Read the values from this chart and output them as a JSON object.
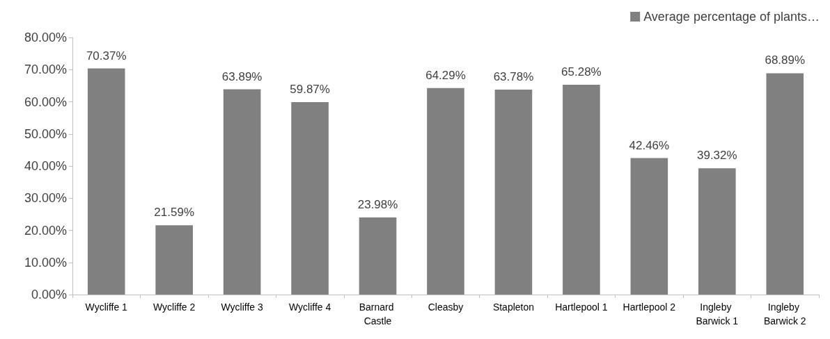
{
  "chart_data": {
    "type": "bar",
    "categories": [
      "Wycliffe 1",
      "Wycliffe 2",
      "Wycliffe 3",
      "Wycliffe 4",
      "Barnard Castle",
      "Cleasby",
      "Stapleton",
      "Hartlepool 1",
      "Hartlepool 2",
      "Ingleby Barwick 1",
      "Ingleby Barwick 2"
    ],
    "series": [
      {
        "name": "Average percentage of plants…",
        "color": "#808080",
        "values": [
          70.37,
          21.59,
          63.89,
          59.87,
          23.98,
          64.29,
          63.78,
          65.28,
          42.46,
          39.32,
          68.89
        ],
        "value_labels": [
          "70.37%",
          "21.59%",
          "63.89%",
          "59.87%",
          "23.98%",
          "64.29%",
          "63.78%",
          "65.28%",
          "42.46%",
          "39.32%",
          "68.89%"
        ]
      }
    ],
    "ylim": [
      0,
      80
    ],
    "yticks": [
      {
        "value": 0,
        "label": "0.00%"
      },
      {
        "value": 10,
        "label": "10.00%"
      },
      {
        "value": 20,
        "label": "20.00%"
      },
      {
        "value": 30,
        "label": "30.00%"
      },
      {
        "value": 40,
        "label": "40.00%"
      },
      {
        "value": 50,
        "label": "50.00%"
      },
      {
        "value": 60,
        "label": "60.00%"
      },
      {
        "value": 70,
        "label": "70.00%"
      },
      {
        "value": 80,
        "label": "80.00%"
      }
    ],
    "grid": false,
    "legend": "top right"
  }
}
